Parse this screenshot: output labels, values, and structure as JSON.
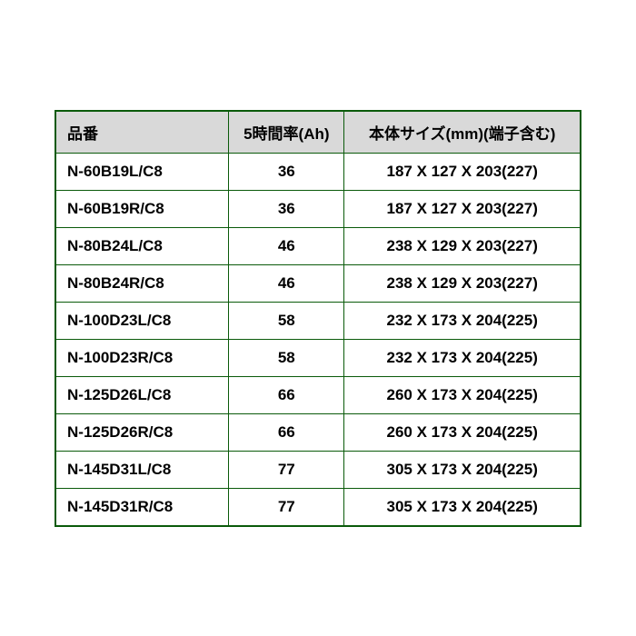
{
  "table": {
    "type": "table",
    "border_color": "#0a5a0a",
    "header_bg": "#d9d9d9",
    "row_bg": "#ffffff",
    "text_color": "#000000",
    "font_weight": "bold",
    "columns": [
      {
        "label": "品番",
        "align": "left",
        "width_pct": 33
      },
      {
        "label": "5時間率(Ah)",
        "align": "center",
        "width_pct": 22
      },
      {
        "label": "本体サイズ(mm)(端子含む)",
        "align": "center",
        "width_pct": 45
      }
    ],
    "rows": [
      {
        "model": "N-60B19L/C8",
        "capacity": "36",
        "size": "187 X 127 X 203(227)"
      },
      {
        "model": "N-60B19R/C8",
        "capacity": "36",
        "size": "187 X 127 X 203(227)"
      },
      {
        "model": "N-80B24L/C8",
        "capacity": "46",
        "size": "238 X 129 X 203(227)"
      },
      {
        "model": "N-80B24R/C8",
        "capacity": "46",
        "size": "238 X 129 X 203(227)"
      },
      {
        "model": "N-100D23L/C8",
        "capacity": "58",
        "size": "232 X 173 X 204(225)"
      },
      {
        "model": "N-100D23R/C8",
        "capacity": "58",
        "size": "232 X 173 X 204(225)"
      },
      {
        "model": "N-125D26L/C8",
        "capacity": "66",
        "size": "260 X 173 X 204(225)"
      },
      {
        "model": "N-125D26R/C8",
        "capacity": "66",
        "size": "260 X 173 X 204(225)"
      },
      {
        "model": "N-145D31L/C8",
        "capacity": "77",
        "size": "305 X 173 X 204(225)"
      },
      {
        "model": "N-145D31R/C8",
        "capacity": "77",
        "size": "305 X 173 X 204(225)"
      }
    ]
  }
}
